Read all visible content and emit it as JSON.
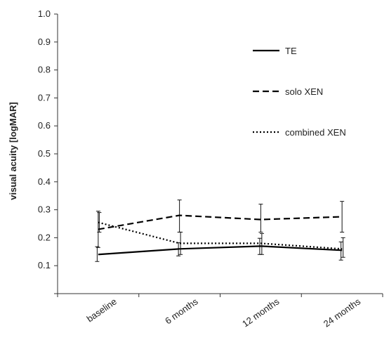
{
  "chart_data": {
    "type": "line",
    "ylabel": "visual acuity [logMAR]",
    "xlabel": "",
    "ylim": [
      0,
      1.0
    ],
    "yticks": [
      "",
      "0.1",
      "0.2",
      "0.3",
      "0.4",
      "0.5",
      "0.6",
      "0.7",
      "0.8",
      "0.9",
      "1.0"
    ],
    "categories": [
      "baseline",
      "6 months",
      "12 months",
      "24 months"
    ],
    "grid": false,
    "legend_position": "top-right",
    "series": [
      {
        "name": "TE",
        "style": "solid",
        "color": "#000000",
        "values": [
          0.14,
          0.16,
          0.17,
          0.155
        ],
        "error_low": [
          0.115,
          0.135,
          0.14,
          0.12
        ],
        "error_high": [
          0.168,
          0.182,
          0.198,
          0.185
        ]
      },
      {
        "name": "solo XEN",
        "style": "dashed",
        "color": "#000000",
        "values": [
          0.23,
          0.28,
          0.265,
          0.275
        ],
        "error_low": [
          0.165,
          0.22,
          0.22,
          0.22
        ],
        "error_high": [
          0.295,
          0.335,
          0.32,
          0.33
        ]
      },
      {
        "name": "combined XEN",
        "style": "dotted",
        "color": "#000000",
        "values": [
          0.255,
          0.18,
          0.18,
          0.16
        ],
        "error_low": [
          0.22,
          0.14,
          0.14,
          0.13
        ],
        "error_high": [
          0.29,
          0.22,
          0.215,
          0.2
        ]
      }
    ]
  }
}
